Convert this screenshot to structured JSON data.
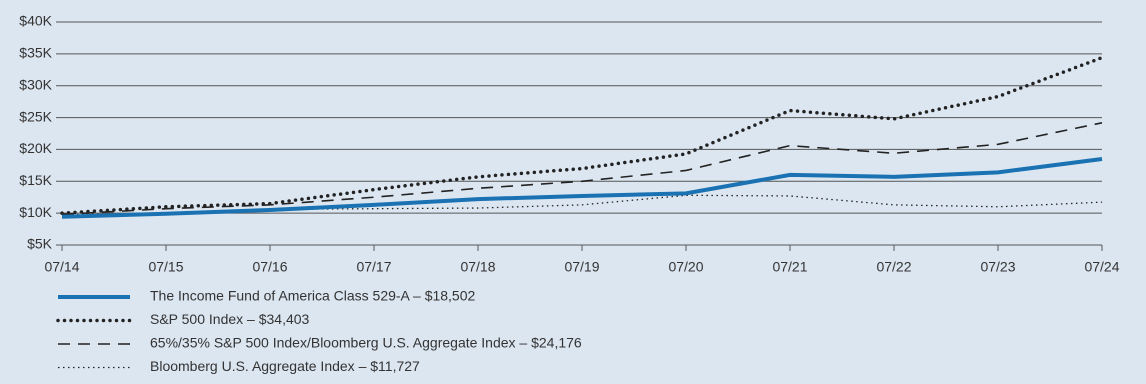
{
  "chart_data": {
    "type": "line",
    "categories": [
      "07/14",
      "07/15",
      "07/16",
      "07/17",
      "07/18",
      "07/19",
      "07/20",
      "07/21",
      "07/22",
      "07/23",
      "07/24"
    ],
    "series": [
      {
        "name": "The Income Fund of America Class 529-A – $18,502",
        "color": "#1a72b3",
        "style": "solid",
        "values": [
          9425,
          9900,
          10500,
          11300,
          12200,
          12700,
          13100,
          16000,
          15700,
          16400,
          18502
        ]
      },
      {
        "name": "S&P 500 Index – $34,403",
        "color": "#222222",
        "style": "heavy-dotted",
        "values": [
          10000,
          11000,
          11500,
          13700,
          15700,
          17000,
          19300,
          26100,
          24800,
          28300,
          34403
        ]
      },
      {
        "name": "65%/35% S&P 500 Index/Bloomberg U.S. Aggregate Index – $24,176",
        "color": "#222222",
        "style": "dashed",
        "values": [
          9800,
          10700,
          11300,
          12500,
          13900,
          15000,
          16700,
          20600,
          19400,
          20800,
          24176
        ]
      },
      {
        "name": "Bloomberg U.S. Aggregate Index – $11,727",
        "color": "#222222",
        "style": "fine-dotted",
        "values": [
          9750,
          10000,
          10600,
          10700,
          10800,
          11300,
          12800,
          12700,
          11300,
          11000,
          11727
        ]
      }
    ],
    "ylim": [
      5000,
      40000
    ],
    "yticks": [
      {
        "value": 5000,
        "label": "$5K"
      },
      {
        "value": 10000,
        "label": "$10K"
      },
      {
        "value": 15000,
        "label": "$15K"
      },
      {
        "value": 20000,
        "label": "$20K"
      },
      {
        "value": 25000,
        "label": "$25K"
      },
      {
        "value": 30000,
        "label": "$30K"
      },
      {
        "value": 35000,
        "label": "$35K"
      },
      {
        "value": 40000,
        "label": "$40K"
      }
    ],
    "grid": true
  }
}
